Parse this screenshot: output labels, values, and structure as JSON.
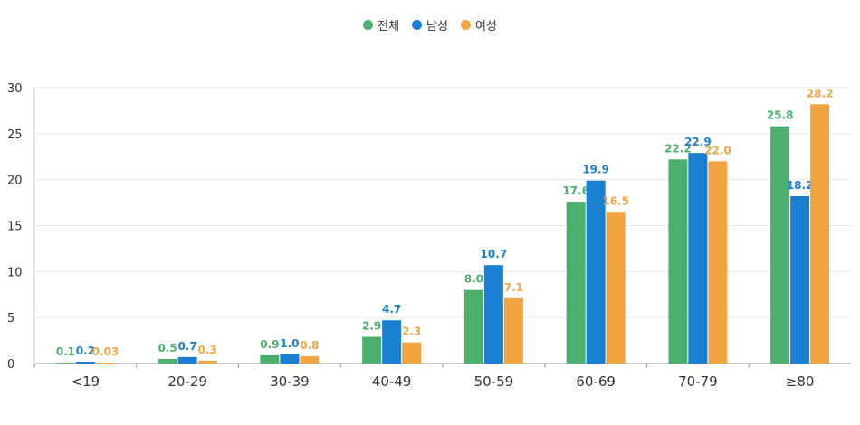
{
  "chart_data": {
    "type": "bar",
    "categories": [
      "<19",
      "20-29",
      "30-39",
      "40-49",
      "50-59",
      "60-69",
      "70-79",
      "≥80"
    ],
    "series": [
      {
        "name": "전체",
        "color": "#4caf6e",
        "values": [
          0.1,
          0.5,
          0.9,
          2.9,
          8.0,
          17.6,
          22.2,
          25.8
        ],
        "labels": [
          "0.1",
          "0.5",
          "0.9",
          "2.9",
          "8.0",
          "17.6",
          "22.2",
          "25.8"
        ]
      },
      {
        "name": "남성",
        "color": "#1a7fd1",
        "values": [
          0.2,
          0.7,
          1.0,
          4.7,
          10.7,
          19.9,
          22.9,
          18.2
        ],
        "labels": [
          "0.2",
          "0.7",
          "1.0",
          "4.7",
          "10.7",
          "19.9",
          "22.9",
          "18.2"
        ]
      },
      {
        "name": "여성",
        "color": "#f2a443",
        "values": [
          0.03,
          0.3,
          0.8,
          2.3,
          7.1,
          16.5,
          22.0,
          28.2
        ],
        "labels": [
          "0.03",
          "0.3",
          "0.8",
          "2.3",
          "7.1",
          "16.5",
          "22.0",
          "28.2"
        ]
      }
    ],
    "yticks": [
      "0",
      "5",
      "10",
      "15",
      "20",
      "25",
      "30"
    ],
    "ylim": [
      0,
      30
    ],
    "grid": true,
    "legend_position": "top-center"
  }
}
